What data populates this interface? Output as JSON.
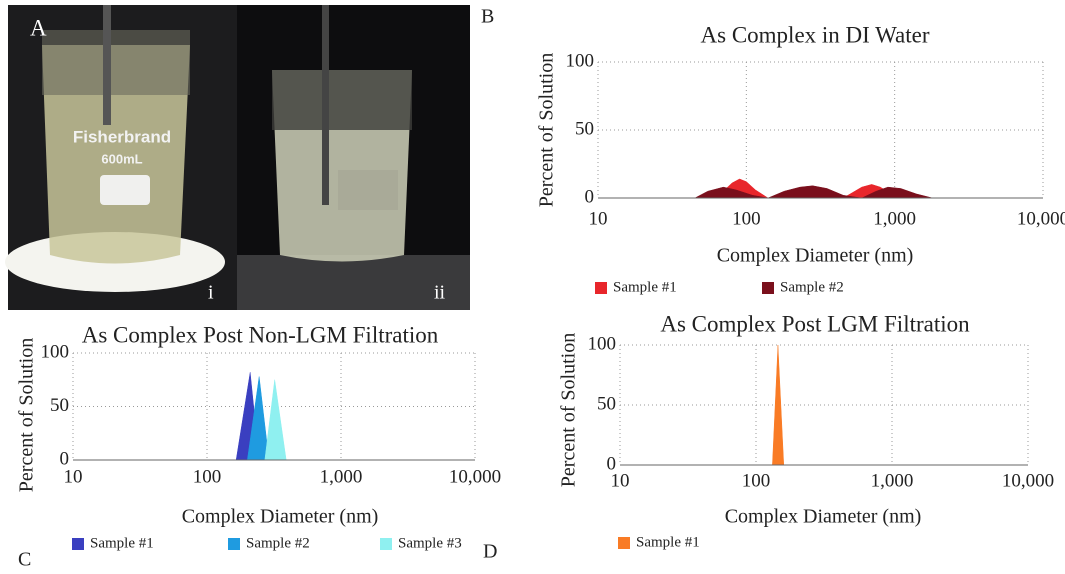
{
  "panel_labels": [
    "A",
    "B",
    "C",
    "D"
  ],
  "photos": [
    {
      "label": "i",
      "brand": "Fisherbrand",
      "volume": "600mL"
    },
    {
      "label": "ii"
    }
  ],
  "chart_data": [
    {
      "type": "area",
      "title": "As Complex in DI Water",
      "x_label": "Complex Diameter (nm)",
      "y_label": "Percent of Solution",
      "xscale": "log",
      "xlim": [
        10,
        10000
      ],
      "ylim": [
        0,
        100
      ],
      "xticks": [
        10,
        100,
        {
          "value": 1000,
          "label": "1,000"
        },
        {
          "value": 10000,
          "label": "10,000"
        }
      ],
      "yticks": [
        0,
        50,
        100
      ],
      "grid": true,
      "legend": "bottom",
      "series": [
        {
          "name": "Sample #1",
          "color": "#e8262b",
          "x": [
            60,
            70,
            80,
            90,
            100,
            115,
            140,
            450,
            520,
            600,
            700,
            800,
            950,
            1200
          ],
          "values": [
            0,
            5,
            11,
            14,
            12,
            6,
            0,
            0,
            4,
            8,
            10,
            8,
            3,
            0
          ]
        },
        {
          "name": "Sample #2",
          "color": "#7a0f1c",
          "x": [
            45,
            55,
            70,
            85,
            110,
            140,
            180,
            230,
            280,
            350,
            450,
            600,
            750,
            900,
            1100,
            1400,
            1800
          ],
          "values": [
            0,
            5,
            8,
            6,
            2,
            0,
            5,
            8,
            9,
            7,
            2,
            0,
            5,
            8,
            7,
            3,
            0
          ]
        }
      ]
    },
    {
      "type": "area",
      "title": "As Complex Post Non-LGM Filtration",
      "x_label": "Complex Diameter (nm)",
      "y_label": "Percent of Solution",
      "xscale": "log",
      "xlim": [
        10,
        10000
      ],
      "ylim": [
        0,
        100
      ],
      "xticks": [
        10,
        100,
        {
          "value": 1000,
          "label": "1,000"
        },
        {
          "value": 10000,
          "label": "10,000"
        }
      ],
      "yticks": [
        0,
        50,
        100
      ],
      "grid": true,
      "legend": "bottom",
      "series": [
        {
          "name": "Sample #1",
          "color": "#3a3fc0",
          "x": [
            165,
            210,
            245
          ],
          "values": [
            0,
            82,
            0
          ]
        },
        {
          "name": "Sample #2",
          "color": "#1f9be0",
          "x": [
            200,
            245,
            290
          ],
          "values": [
            0,
            78,
            0
          ]
        },
        {
          "name": "Sample #3",
          "color": "#8ff0f0",
          "x": [
            270,
            320,
            390
          ],
          "values": [
            0,
            75,
            0
          ]
        }
      ]
    },
    {
      "type": "area",
      "title": "As Complex Post LGM Filtration",
      "x_label": "Complex Diameter (nm)",
      "y_label": "Percent of Solution",
      "xscale": "log",
      "xlim": [
        10,
        10000
      ],
      "ylim": [
        0,
        100
      ],
      "xticks": [
        10,
        100,
        {
          "value": 1000,
          "label": "1,000"
        },
        {
          "value": 10000,
          "label": "10,000"
        }
      ],
      "yticks": [
        0,
        50,
        100
      ],
      "grid": true,
      "legend": "bottom",
      "series": [
        {
          "name": "Sample #1",
          "color": "#f97b25",
          "x": [
            132,
            145,
            160
          ],
          "values": [
            0,
            100,
            0
          ]
        }
      ]
    }
  ]
}
